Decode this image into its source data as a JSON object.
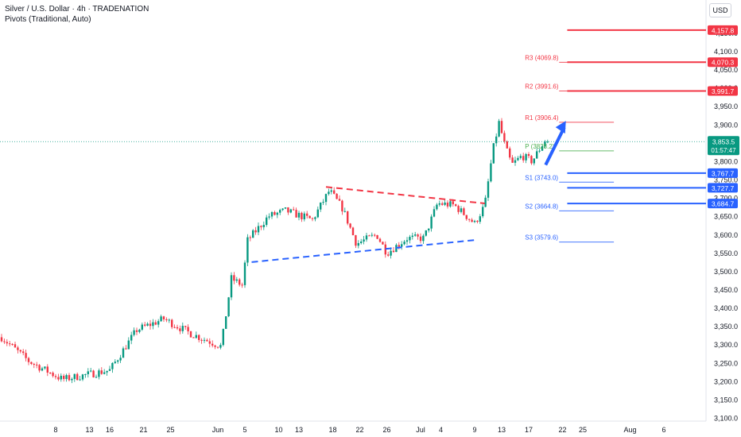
{
  "header": {
    "title": "Silver / U.S. Dollar · 4h · TRADENATION",
    "subtitle": "Pivots (Traditional, Auto)",
    "currency": "USD"
  },
  "colors": {
    "up": "#089981",
    "down": "#f23645",
    "red_level": "#f23645",
    "blue_level": "#2962ff",
    "pivot_green": "#4caf50",
    "arrow": "#2962ff",
    "axis_text": "#131722"
  },
  "chart_data": {
    "type": "candlestick",
    "ylim": [
      3100,
      4200
    ],
    "price_ticks": [
      3100,
      3150,
      3200,
      3250,
      3300,
      3350,
      3400,
      3450,
      3500,
      3550,
      3600,
      3650,
      3700,
      3750,
      3800,
      3850,
      3900,
      3950,
      4000,
      4050,
      4100,
      4150
    ],
    "price_tick_labels": [
      "3,100.0",
      "3,150.0",
      "3,200.0",
      "3,250.0",
      "3,300.0",
      "3,350.0",
      "3,400.0",
      "3,450.0",
      "3,500.0",
      "3,550.0",
      "3,600.0",
      "3,650.0",
      "3,700.0",
      "3,750.0",
      "3,800.0",
      "3,850.0",
      "3,900.0",
      "3,950.0",
      "4,000.0",
      "4,050.0",
      "4,100.0",
      "4,150.0"
    ],
    "date_ticks": [
      {
        "label": "8",
        "day": 8
      },
      {
        "label": "13",
        "day": 13
      },
      {
        "label": "16",
        "day": 16
      },
      {
        "label": "21",
        "day": 21
      },
      {
        "label": "25",
        "day": 25
      },
      {
        "label": "Jun",
        "day": 32
      },
      {
        "label": "5",
        "day": 36
      },
      {
        "label": "10",
        "day": 41
      },
      {
        "label": "13",
        "day": 44
      },
      {
        "label": "18",
        "day": 49
      },
      {
        "label": "22",
        "day": 53
      },
      {
        "label": "26",
        "day": 57
      },
      {
        "label": "Jul",
        "day": 62
      },
      {
        "label": "4",
        "day": 65
      },
      {
        "label": "9",
        "day": 70
      },
      {
        "label": "13",
        "day": 74
      },
      {
        "label": "17",
        "day": 78
      },
      {
        "label": "22",
        "day": 83
      },
      {
        "label": "25",
        "day": 86
      },
      {
        "label": "Aug",
        "day": 93
      },
      {
        "label": "6",
        "day": 98
      }
    ],
    "price_segments": [
      {
        "day": 0,
        "price": 3320
      },
      {
        "day": 4,
        "price": 3255
      },
      {
        "day": 9,
        "price": 3205
      },
      {
        "day": 16,
        "price": 3230
      },
      {
        "day": 20,
        "price": 3340
      },
      {
        "day": 24,
        "price": 3370
      },
      {
        "day": 28,
        "price": 3330
      },
      {
        "day": 32.5,
        "price": 3295
      },
      {
        "day": 34,
        "price": 3480
      },
      {
        "day": 35.8,
        "price": 3460
      },
      {
        "day": 36.2,
        "price": 3580
      },
      {
        "day": 39.5,
        "price": 3650
      },
      {
        "day": 42,
        "price": 3665
      },
      {
        "day": 46,
        "price": 3640
      },
      {
        "day": 48.5,
        "price": 3720
      },
      {
        "day": 50.5,
        "price": 3670
      },
      {
        "day": 52.5,
        "price": 3575
      },
      {
        "day": 55.5,
        "price": 3600
      },
      {
        "day": 57,
        "price": 3550
      },
      {
        "day": 60,
        "price": 3590
      },
      {
        "day": 62.5,
        "price": 3590
      },
      {
        "day": 64.5,
        "price": 3685
      },
      {
        "day": 67,
        "price": 3680
      },
      {
        "day": 70,
        "price": 3630
      },
      {
        "day": 71.5,
        "price": 3680
      },
      {
        "day": 72.7,
        "price": 3830
      },
      {
        "day": 73.6,
        "price": 3905
      },
      {
        "day": 74.5,
        "price": 3840
      },
      {
        "day": 75.5,
        "price": 3790
      },
      {
        "day": 77,
        "price": 3815
      },
      {
        "day": 78.5,
        "price": 3800
      },
      {
        "day": 80,
        "price": 3845
      },
      {
        "day": 80.8,
        "price": 3853.5
      }
    ],
    "trendlines": [
      {
        "name": "resistance",
        "color": "#f23645",
        "dash": true,
        "from": {
          "day": 48,
          "price": 3730
        },
        "to": {
          "day": 71.5,
          "price": 3685
        }
      },
      {
        "name": "support",
        "color": "#2962ff",
        "dash": true,
        "from": {
          "day": 37,
          "price": 3525
        },
        "to": {
          "day": 70,
          "price": 3585
        }
      }
    ],
    "arrow": {
      "from": {
        "day": 80.5,
        "price": 3790
      },
      "to": {
        "day": 83.5,
        "price": 3910
      }
    },
    "pivots": [
      {
        "label": "R3 (4069.8)",
        "price": 4069.8,
        "color": "#f23645"
      },
      {
        "label": "R2 (3991.6)",
        "price": 3991.6,
        "color": "#f23645"
      },
      {
        "label": "R1 (3906.4)",
        "price": 3906.4,
        "color": "#f23645"
      },
      {
        "label": "P (3828.2)",
        "price": 3828.2,
        "color": "#4caf50"
      },
      {
        "label": "S1 (3743.0)",
        "price": 3743.0,
        "color": "#2962ff"
      },
      {
        "label": "S2 (3664.8)",
        "price": 3664.8,
        "color": "#2962ff"
      },
      {
        "label": "S3 (3579.6)",
        "price": 3579.6,
        "color": "#2962ff"
      }
    ],
    "levels": [
      {
        "label": "4,157.8",
        "price": 4157.8,
        "color": "#f23645"
      },
      {
        "label": "4,070.3",
        "price": 4070.3,
        "color": "#f23645"
      },
      {
        "label": "3,991.7",
        "price": 3991.7,
        "color": "#f23645"
      },
      {
        "label": "3,767.7",
        "price": 3767.7,
        "color": "#2962ff"
      },
      {
        "label": "3,727.7",
        "price": 3727.7,
        "color": "#2962ff"
      },
      {
        "label": "3,684.7",
        "price": 3684.7,
        "color": "#2962ff"
      }
    ],
    "current_price": {
      "label": "3,853.5",
      "countdown": "01:57:47",
      "price": 3853.5,
      "color": "#089981"
    }
  }
}
